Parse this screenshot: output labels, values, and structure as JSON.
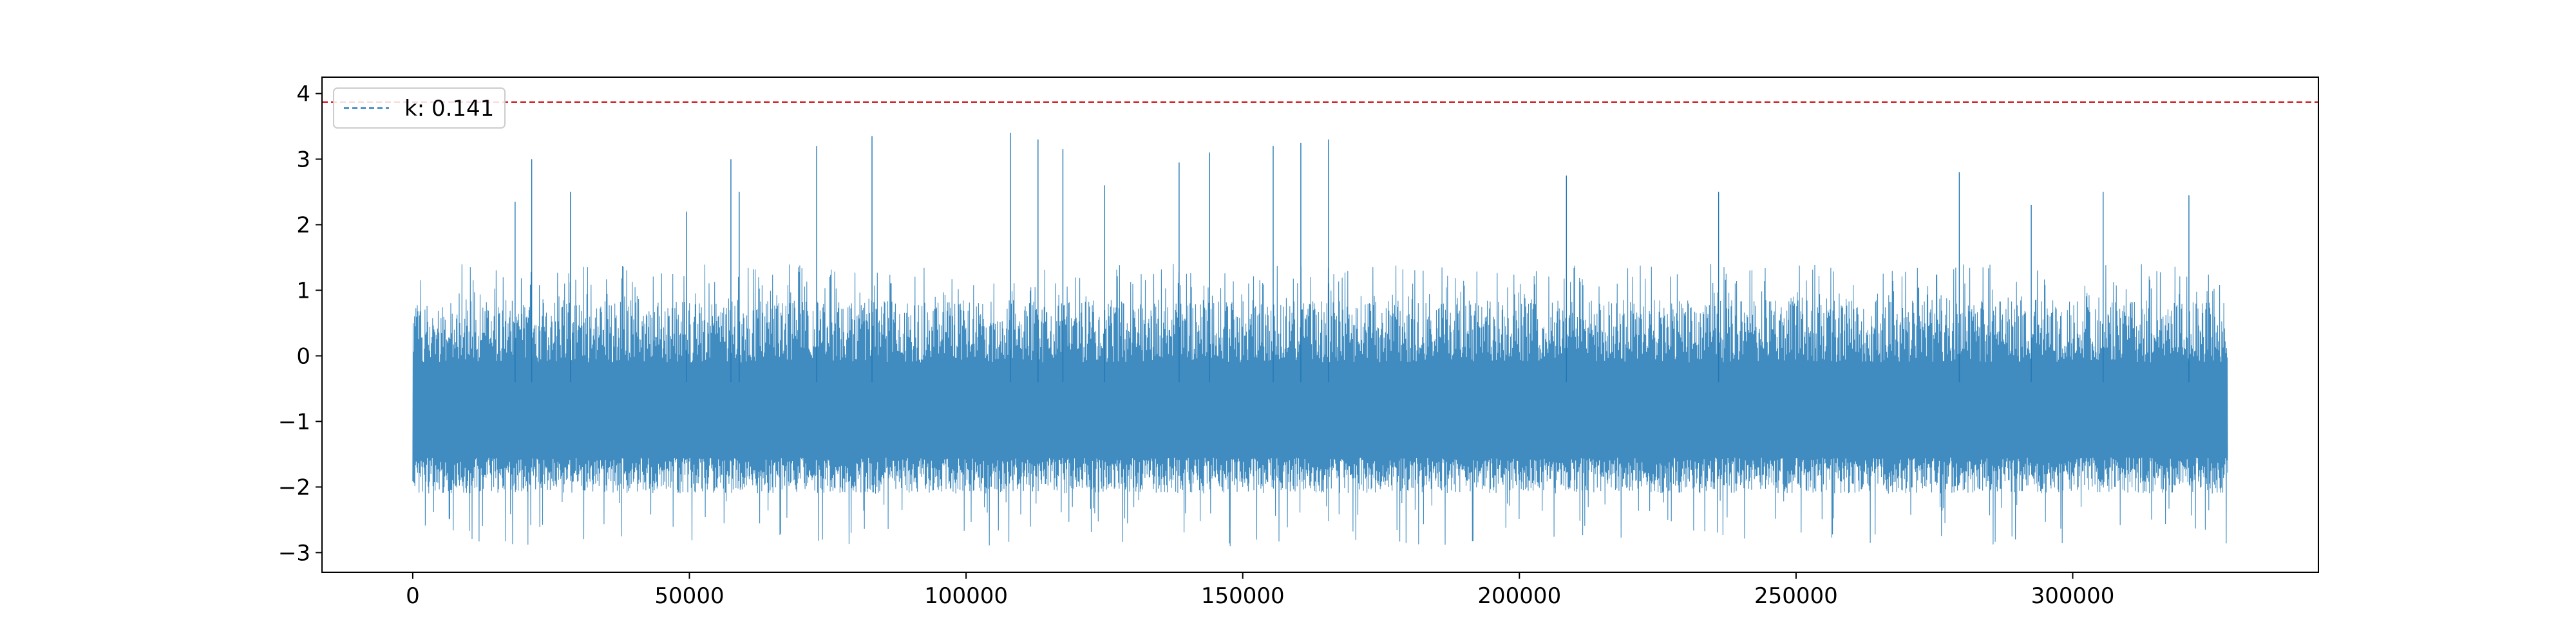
{
  "chart_data": {
    "type": "line",
    "title": "",
    "xlabel": "",
    "ylabel": "",
    "xlim": [
      -16400,
      344400
    ],
    "ylim": [
      -3.3,
      4.25
    ],
    "x_ticks": [
      0,
      50000,
      100000,
      150000,
      200000,
      250000,
      300000
    ],
    "x_tick_labels": [
      "0",
      "50000",
      "100000",
      "150000",
      "200000",
      "250000",
      "300000"
    ],
    "y_ticks": [
      -3,
      -2,
      -1,
      0,
      1,
      2,
      3,
      4
    ],
    "y_tick_labels": [
      "−3",
      "−2",
      "−1",
      "0",
      "1",
      "2",
      "3",
      "4"
    ],
    "grid": false,
    "legend_placement": "upper-left",
    "legend_entries": [
      {
        "label": "k: 0.141",
        "line_style": "dashed",
        "color": "#1f77b4"
      }
    ],
    "threshold_line": {
      "y": 3.87,
      "color": "#d62728",
      "style": "dashed"
    },
    "series": [
      {
        "color": "#1f77b4",
        "x_range": [
          0,
          328000
        ],
        "n_points": 328000,
        "spikes": [
          {
            "x": 18500,
            "y": 2.35
          },
          {
            "x": 21500,
            "y": 3.0
          },
          {
            "x": 28500,
            "y": 2.5
          },
          {
            "x": 49500,
            "y": 2.2
          },
          {
            "x": 57500,
            "y": 3.0
          },
          {
            "x": 59000,
            "y": 2.5
          },
          {
            "x": 73000,
            "y": 3.2
          },
          {
            "x": 83000,
            "y": 3.35
          },
          {
            "x": 108000,
            "y": 3.4
          },
          {
            "x": 113000,
            "y": 3.3
          },
          {
            "x": 117500,
            "y": 3.15
          },
          {
            "x": 125000,
            "y": 2.6
          },
          {
            "x": 138500,
            "y": 2.95
          },
          {
            "x": 144000,
            "y": 3.1
          },
          {
            "x": 155500,
            "y": 3.2
          },
          {
            "x": 160500,
            "y": 3.25
          },
          {
            "x": 165500,
            "y": 3.3
          },
          {
            "x": 208500,
            "y": 2.75
          },
          {
            "x": 236000,
            "y": 2.5
          },
          {
            "x": 279500,
            "y": 2.8
          },
          {
            "x": 292500,
            "y": 2.3
          },
          {
            "x": 305500,
            "y": 2.5
          },
          {
            "x": 321000,
            "y": 2.45
          }
        ]
      }
    ]
  }
}
